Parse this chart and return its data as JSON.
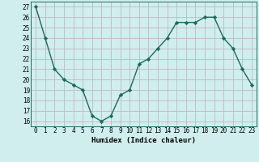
{
  "x": [
    0,
    1,
    2,
    3,
    4,
    5,
    6,
    7,
    8,
    9,
    10,
    11,
    12,
    13,
    14,
    15,
    16,
    17,
    18,
    19,
    20,
    21,
    22,
    23
  ],
  "y": [
    27,
    24,
    21,
    20,
    19.5,
    19,
    16.5,
    16,
    16.5,
    18.5,
    19,
    21.5,
    22,
    23,
    24,
    25.5,
    25.5,
    25.5,
    26,
    26,
    24,
    23,
    21,
    19.5
  ],
  "line_color": "#1a6b5a",
  "marker": "D",
  "marker_size": 2.2,
  "bg_color": "#d0eeee",
  "grid_color": "#c0b8c8",
  "xlabel": "Humidex (Indice chaleur)",
  "xlim": [
    -0.5,
    23.5
  ],
  "ylim": [
    15.5,
    27.5
  ],
  "yticks": [
    16,
    17,
    18,
    19,
    20,
    21,
    22,
    23,
    24,
    25,
    26,
    27
  ],
  "xticks": [
    0,
    1,
    2,
    3,
    4,
    5,
    6,
    7,
    8,
    9,
    10,
    11,
    12,
    13,
    14,
    15,
    16,
    17,
    18,
    19,
    20,
    21,
    22,
    23
  ],
  "linewidth": 1.0,
  "xlabel_fontsize": 6.5,
  "tick_fontsize": 5.5
}
